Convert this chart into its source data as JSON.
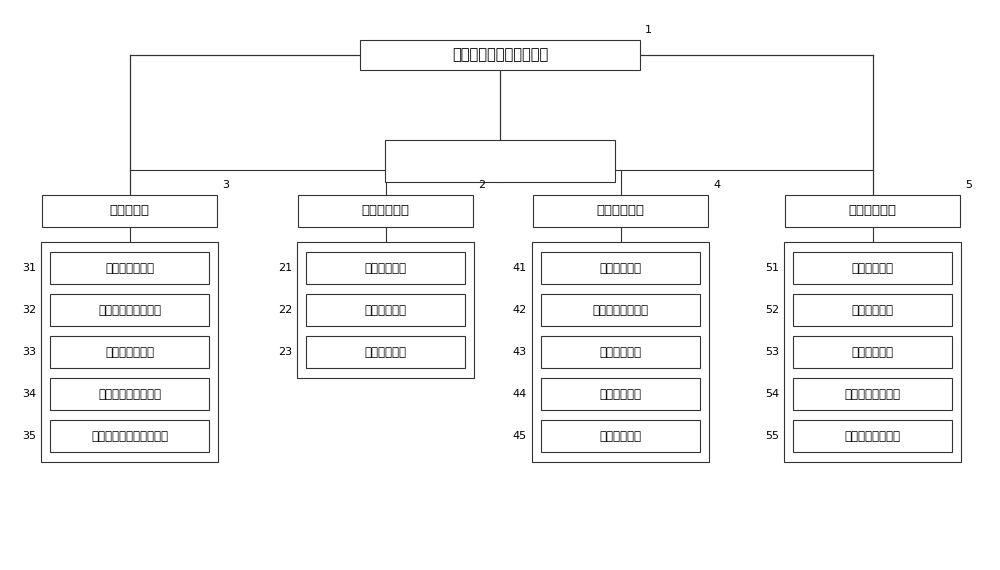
{
  "title": "协同指挥调度云数据中心",
  "title_label": "1",
  "background_color": "#ffffff",
  "line_color": "#333333",
  "box_border_color": "#333333",
  "text_color": "#000000",
  "font_size_main": 10.5,
  "font_size_sub": 9.5,
  "font_size_module": 8.5,
  "font_size_label": 8.0,
  "platforms": [
    {
      "name": "情报板平台",
      "label": "3",
      "modules": [
        {
          "name": "情报板展示模块",
          "label": "31"
        },
        {
          "name": "情报板状态检测模块",
          "label": "32"
        },
        {
          "name": "情报板发布模块",
          "label": "33"
        },
        {
          "name": "情报板资源管理模块",
          "label": "34"
        },
        {
          "name": "情报板历史记录管理模块",
          "label": "35"
        }
      ]
    },
    {
      "name": "视频监控平台",
      "label": "2",
      "modules": [
        {
          "name": "视频查看模块",
          "label": "21"
        },
        {
          "name": "视频监测模块",
          "label": "22"
        },
        {
          "name": "视频统计模块",
          "label": "23"
        }
      ]
    },
    {
      "name": "语音日志平台",
      "label": "4",
      "modules": [
        {
          "name": "语音展示模块",
          "label": "41"
        },
        {
          "name": "语音工单处理模块",
          "label": "42"
        },
        {
          "name": "语音下载模块",
          "label": "43"
        },
        {
          "name": "语音回放模块",
          "label": "44"
        },
        {
          "name": "语音统计模块",
          "label": "45"
        }
      ]
    },
    {
      "name": "指挥调度平台",
      "label": "5",
      "modules": [
        {
          "name": "综合展示模块",
          "label": "51"
        },
        {
          "name": "事件处置模块",
          "label": "52"
        },
        {
          "name": "单兵系统模块",
          "label": "53"
        },
        {
          "name": "微信事件查看模块",
          "label": "54"
        },
        {
          "name": "微信公众服务模块",
          "label": "55"
        }
      ]
    }
  ]
}
